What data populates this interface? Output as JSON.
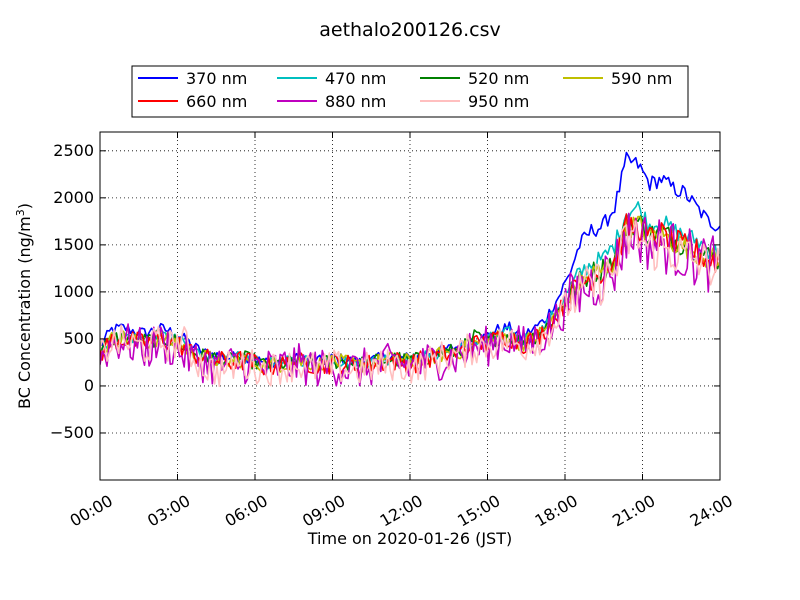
{
  "chart_data": {
    "type": "line",
    "title": "aethalo200126.csv",
    "xlabel": "Time on 2020-01-26 (JST)",
    "ylabel": "BC Concentration (ng/m",
    "ylabel_sup": "3",
    "ylabel_close": ")",
    "xlim_hours": [
      0,
      24
    ],
    "ylim": [
      -1000,
      2700
    ],
    "x_ticks": [
      0,
      3,
      6,
      9,
      12,
      15,
      18,
      21,
      24
    ],
    "x_tick_labels": [
      "00:00",
      "03:00",
      "06:00",
      "09:00",
      "12:00",
      "15:00",
      "18:00",
      "21:00",
      "24:00"
    ],
    "y_ticks": [
      -500,
      0,
      500,
      1000,
      1500,
      2000,
      2500
    ],
    "y_tick_labels": [
      "−500",
      "0",
      "500",
      "1000",
      "1500",
      "2000",
      "2500"
    ],
    "grid": true,
    "legend_position": "top-center",
    "legend_columns": 4,
    "profile_note": "approximate 30-min resolution trace read from the figure",
    "series": [
      {
        "name": "370 nm",
        "color": "#0000ff",
        "values": [
          420,
          600,
          620,
          580,
          560,
          620,
          580,
          520,
          420,
          350,
          330,
          300,
          320,
          300,
          250,
          260,
          270,
          300,
          290,
          260,
          300,
          280,
          250,
          270,
          300,
          320,
          300,
          300,
          350,
          380,
          400,
          430,
          500,
          520,
          600,
          620,
          520,
          600,
          700,
          900,
          1150,
          1500,
          1650,
          1700,
          1900,
          2400,
          2350,
          2150,
          2200,
          2100,
          2050,
          1900,
          1750,
          1700
        ]
      },
      {
        "name": "470 nm",
        "color": "#00bfbf",
        "values": [
          380,
          520,
          540,
          510,
          490,
          540,
          510,
          460,
          380,
          320,
          300,
          280,
          300,
          280,
          230,
          240,
          250,
          280,
          270,
          240,
          280,
          260,
          230,
          250,
          280,
          300,
          280,
          280,
          320,
          350,
          370,
          400,
          460,
          480,
          540,
          560,
          480,
          540,
          620,
          800,
          1000,
          1200,
          1300,
          1350,
          1500,
          1850,
          1900,
          1700,
          1750,
          1650,
          1600,
          1550,
          1450,
          1400
        ]
      },
      {
        "name": "520 nm",
        "color": "#008000",
        "values": [
          360,
          500,
          520,
          490,
          470,
          520,
          490,
          440,
          360,
          300,
          290,
          270,
          290,
          270,
          220,
          230,
          240,
          270,
          260,
          230,
          270,
          250,
          220,
          240,
          270,
          290,
          270,
          270,
          310,
          340,
          360,
          390,
          520,
          470,
          520,
          540,
          460,
          520,
          600,
          760,
          950,
          1100,
          1200,
          1250,
          1350,
          1700,
          1750,
          1600,
          1650,
          1550,
          1500,
          1450,
          1380,
          1350
        ]
      },
      {
        "name": "590 nm",
        "color": "#bfbf00",
        "values": [
          350,
          490,
          510,
          480,
          460,
          510,
          480,
          430,
          350,
          300,
          280,
          260,
          280,
          260,
          220,
          230,
          240,
          260,
          250,
          220,
          260,
          240,
          220,
          240,
          260,
          280,
          260,
          260,
          300,
          330,
          350,
          380,
          450,
          460,
          510,
          530,
          450,
          510,
          590,
          750,
          930,
          1080,
          1180,
          1230,
          1330,
          1680,
          1720,
          1580,
          1620,
          1530,
          1480,
          1430,
          1360,
          1330
        ]
      },
      {
        "name": "660 nm",
        "color": "#ff0000",
        "values": [
          340,
          480,
          500,
          470,
          450,
          500,
          470,
          420,
          340,
          290,
          270,
          250,
          270,
          250,
          210,
          220,
          230,
          250,
          240,
          210,
          250,
          230,
          210,
          230,
          250,
          270,
          250,
          250,
          290,
          320,
          340,
          370,
          440,
          450,
          500,
          520,
          440,
          500,
          580,
          740,
          920,
          1070,
          1170,
          1220,
          1320,
          1680,
          1700,
          1560,
          1600,
          1520,
          1470,
          1420,
          1350,
          1320
        ]
      },
      {
        "name": "880 nm",
        "color": "#bf00bf",
        "values": [
          300,
          450,
          480,
          420,
          380,
          460,
          420,
          350,
          280,
          250,
          210,
          220,
          240,
          230,
          180,
          200,
          220,
          230,
          210,
          180,
          220,
          190,
          170,
          200,
          220,
          240,
          220,
          200,
          260,
          280,
          300,
          330,
          400,
          420,
          470,
          500,
          420,
          470,
          550,
          700,
          880,
          1000,
          1080,
          1150,
          1250,
          1600,
          1620,
          1500,
          1520,
          1450,
          1400,
          1350,
          1300,
          1280
        ]
      },
      {
        "name": "950 nm",
        "color": "#ffbfbf",
        "values": [
          310,
          460,
          470,
          430,
          400,
          470,
          430,
          500,
          300,
          200,
          150,
          200,
          230,
          220,
          170,
          190,
          210,
          220,
          200,
          170,
          210,
          180,
          170,
          190,
          210,
          230,
          210,
          190,
          250,
          300,
          320,
          350,
          410,
          430,
          460,
          480,
          410,
          460,
          540,
          690,
          860,
          980,
          1060,
          1120,
          1220,
          1550,
          1580,
          1450,
          1470,
          1420,
          1380,
          1330,
          1280,
          1260
        ]
      }
    ]
  }
}
